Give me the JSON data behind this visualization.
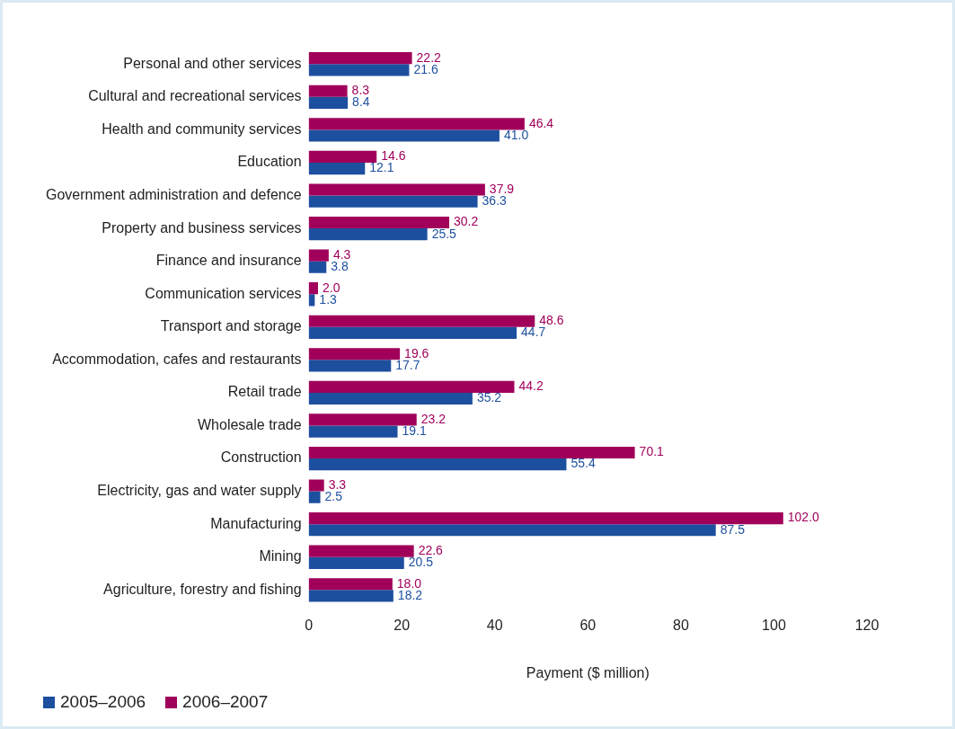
{
  "chart_data": {
    "type": "bar",
    "orientation": "horizontal",
    "xlabel": "Payment ($ million)",
    "categories": [
      "Personal and other services",
      "Cultural and recreational services",
      "Health and community services",
      "Education",
      "Government administration and defence",
      "Property and business services",
      "Finance and insurance",
      "Communication services",
      "Transport and storage",
      "Accommodation, cafes and restaurants",
      "Retail trade",
      "Wholesale trade",
      "Construction",
      "Electricity, gas and water supply",
      "Manufacturing",
      "Mining",
      "Agriculture, forestry and fishing"
    ],
    "series": [
      {
        "name": "2005–2006",
        "color": "#1d4f9f",
        "values": [
          21.6,
          8.4,
          41.0,
          12.1,
          36.3,
          25.5,
          3.8,
          1.3,
          44.7,
          17.7,
          35.2,
          19.1,
          55.4,
          2.5,
          87.5,
          20.5,
          18.2
        ],
        "value_labels": [
          "21.6",
          "8.4",
          "41.0",
          "12.1",
          "36.3",
          "25.5",
          "3.8",
          "1.3",
          "44.7",
          "17.7",
          "35.2",
          "19.1",
          "55.4",
          "2.5",
          "87.5",
          "20.5",
          "18.2"
        ]
      },
      {
        "name": "2006–2007",
        "color": "#a0005a",
        "values": [
          22.2,
          8.3,
          46.4,
          14.6,
          37.9,
          30.2,
          4.3,
          2.0,
          48.6,
          19.6,
          44.2,
          23.2,
          70.1,
          3.3,
          102.0,
          22.6,
          18.0
        ],
        "value_labels": [
          "22.2",
          "8.3",
          "46.4",
          "14.6",
          "37.9",
          "30.2",
          "4.3",
          "2.0",
          "48.6",
          "19.6",
          "44.2",
          "23.2",
          "70.1",
          "3.3",
          "102.0",
          "22.6",
          "18.0"
        ]
      }
    ],
    "xlim": [
      0,
      120
    ],
    "xticks": [
      0,
      20,
      40,
      60,
      80,
      100,
      120
    ],
    "grid": false,
    "legend": "bottom left"
  }
}
